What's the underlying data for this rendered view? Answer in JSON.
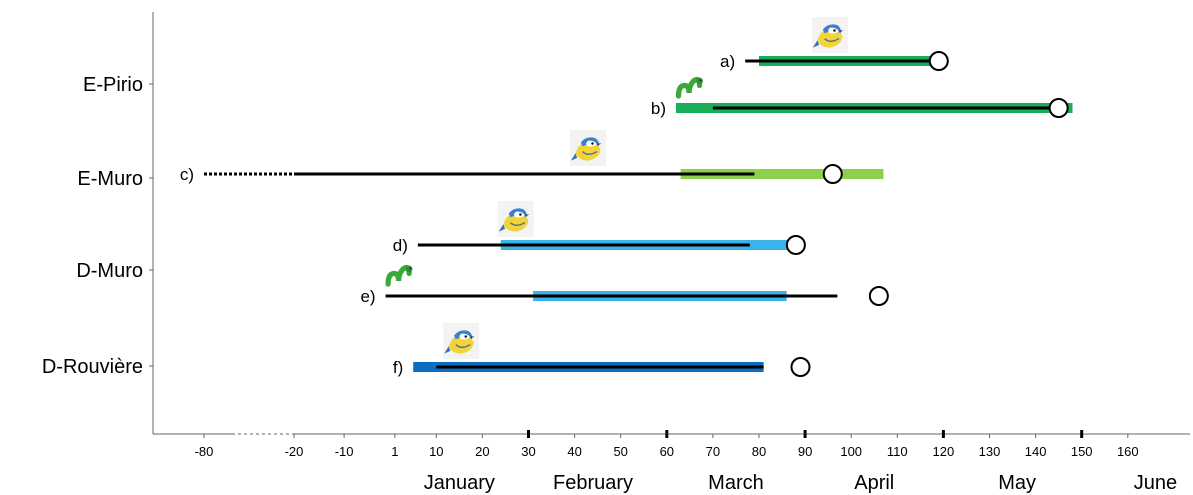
{
  "chart_data": {
    "type": "timeline",
    "sites": [
      {
        "name": "E-Pirio"
      },
      {
        "name": "E-Muro"
      },
      {
        "name": "D-Muro"
      },
      {
        "name": "D-Rouvière"
      }
    ],
    "x_ticks": [
      -80,
      -20,
      -10,
      1,
      10,
      20,
      30,
      40,
      50,
      60,
      70,
      80,
      90,
      100,
      110,
      120,
      130,
      140,
      150,
      160
    ],
    "x_tick_labels": [
      "-80",
      "-20",
      "-10",
      "1",
      "10",
      "20",
      "30",
      "40",
      "50",
      "60",
      "70",
      "80",
      "90",
      "100",
      "110",
      "120",
      "130",
      "140",
      "150",
      "160"
    ],
    "months": [
      {
        "label": "January",
        "center": 15,
        "boundary_end": 30
      },
      {
        "label": "February",
        "center": 44,
        "boundary_end": 60
      },
      {
        "label": "March",
        "center": 75,
        "boundary_end": 90
      },
      {
        "label": "April",
        "center": 105,
        "boundary_end": 120
      },
      {
        "label": "May",
        "center": 136,
        "boundary_end": 150
      },
      {
        "label": "June",
        "center": 166,
        "boundary_end": 180
      }
    ],
    "rows": [
      {
        "label": "a)",
        "site": "E-Pirio",
        "icon": "bird",
        "black_start": 77,
        "black_end": 119,
        "band_start": 80,
        "band_end": 119,
        "band_color": "#1aae58",
        "circle": 119
      },
      {
        "label": "b)",
        "site": "E-Pirio",
        "icon": "caterpillar",
        "black_start": 70,
        "black_end": 145,
        "band_start": 62,
        "band_end": 148,
        "band_color": "#1aae58",
        "circle": 145
      },
      {
        "label": "c)",
        "site": "E-Muro",
        "icon": "bird",
        "black_start": -80,
        "black_end": 79,
        "dotted_until": -20,
        "band_start": 63,
        "band_end": 107,
        "band_color": "#8bd14d",
        "circle": 96
      },
      {
        "label": "d)",
        "site": "D-Muro",
        "icon": "bird",
        "black_start": 6,
        "black_end": 78,
        "band_start": 24,
        "band_end": 87,
        "band_color": "#3ab3ea",
        "circle": 88
      },
      {
        "label": "e)",
        "site": "D-Muro",
        "icon": "caterpillar",
        "black_start": -1,
        "black_end": 97,
        "band_start": 31,
        "band_end": 86,
        "band_color": "#3ab3ea",
        "circle": 106
      },
      {
        "label": "f)",
        "site": "D-Rouvière",
        "icon": "bird",
        "black_start": 10,
        "black_end": 81,
        "band_start": 5,
        "band_end": 81,
        "band_color": "#0a6dc2",
        "circle": 89
      }
    ],
    "icons": {
      "bird": "blue-tit-icon",
      "caterpillar": "caterpillar-icon"
    },
    "colors": {
      "axis": "#666666",
      "line": "#000000"
    }
  }
}
